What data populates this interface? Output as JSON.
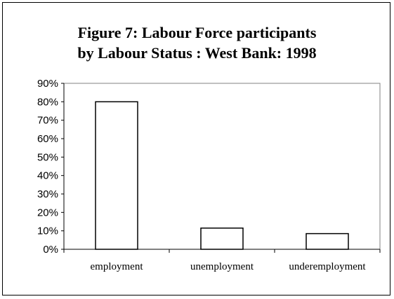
{
  "chart_data": {
    "type": "bar",
    "title_line1": "Figure 7: Labour Force participants",
    "title_line2": "by Labour Status : West Bank: 1998",
    "categories": [
      "employment",
      "unemployment",
      "underemployment"
    ],
    "values": [
      80,
      11.5,
      8.5
    ],
    "ylim": [
      0,
      90
    ],
    "ytick_step": 10,
    "ytick_labels": [
      "0%",
      "10%",
      "20%",
      "30%",
      "40%",
      "50%",
      "60%",
      "70%",
      "80%",
      "90%"
    ],
    "xlabel": "",
    "ylabel": "",
    "grid": false,
    "legend": "none",
    "bar_fill": "#ffffff",
    "bar_stroke": "#000000",
    "plot_border": "#808080"
  }
}
